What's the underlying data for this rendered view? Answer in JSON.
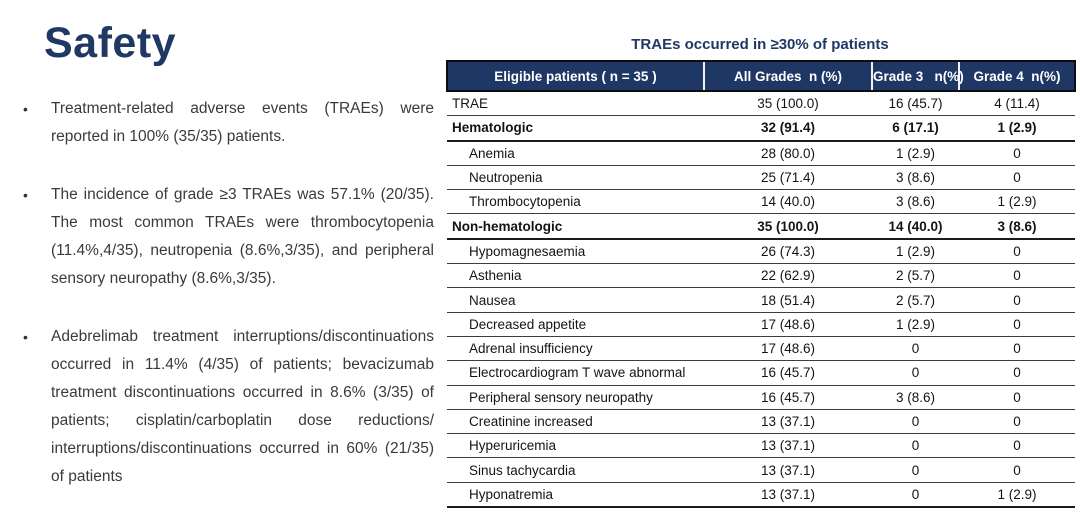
{
  "slide": {
    "title": "Safety",
    "bullet_glyph": "•",
    "bullets": [
      "Treatment-related adverse events (TRAEs) were reported in 100% (35/35) patients.",
      "The incidence of grade ≥3 TRAEs was 57.1% (20/35). The most common TRAEs were thrombocytopenia (11.4%,4/35), neutropenia (8.6%,3/35), and peripheral sensory neuropathy (8.6%,3/35).",
      "Adebrelimab treatment interruptions/discontinuations occurred in 11.4% (4/35) of patients; bevacizumab treatment discontinuations occurred in 8.6% (3/35) of patients; cisplatin/carboplatin dose reductions/ interruptions/discontinuations occurred in 60% (21/35) of patients"
    ]
  },
  "table": {
    "title": "TRAEs occurred in ≥30% of patients",
    "columns": [
      "Eligible patients ( n = 35 )",
      "All Grades  n (%)",
      "Grade 3   n(%)",
      "Grade 4  n(%)"
    ],
    "rows": [
      {
        "label": "TRAE",
        "style": "normal",
        "all_grades": "35 (100.0)",
        "grade3": "16 (45.7)",
        "grade4": "4 (11.4)"
      },
      {
        "label": "Hematologic",
        "style": "section",
        "all_grades": "32 (91.4)",
        "grade3": "6 (17.1)",
        "grade4": "1 (2.9)"
      },
      {
        "label": "Anemia",
        "style": "sub",
        "all_grades": "28 (80.0)",
        "grade3": "1 (2.9)",
        "grade4": "0"
      },
      {
        "label": "Neutropenia",
        "style": "sub",
        "all_grades": "25 (71.4)",
        "grade3": "3 (8.6)",
        "grade4": "0"
      },
      {
        "label": "Thrombocytopenia",
        "style": "sub",
        "all_grades": "14 (40.0)",
        "grade3": "3 (8.6)",
        "grade4": "1 (2.9)"
      },
      {
        "label": "Non-hematologic",
        "style": "section",
        "all_grades": "35 (100.0)",
        "grade3": "14 (40.0)",
        "grade4": "3 (8.6)"
      },
      {
        "label": "Hypomagnesaemia",
        "style": "sub",
        "all_grades": "26 (74.3)",
        "grade3": "1 (2.9)",
        "grade4": "0"
      },
      {
        "label": "Asthenia",
        "style": "sub",
        "all_grades": "22 (62.9)",
        "grade3": "2 (5.7)",
        "grade4": "0"
      },
      {
        "label": "Nausea",
        "style": "sub",
        "all_grades": "18 (51.4)",
        "grade3": "2 (5.7)",
        "grade4": "0"
      },
      {
        "label": "Decreased appetite",
        "style": "sub",
        "all_grades": "17 (48.6)",
        "grade3": "1 (2.9)",
        "grade4": "0"
      },
      {
        "label": "Adrenal insufficiency",
        "style": "sub",
        "all_grades": "17 (48.6)",
        "grade3": "0",
        "grade4": "0"
      },
      {
        "label": "Electrocardiogram T wave abnormal",
        "style": "sub",
        "all_grades": "16 (45.7)",
        "grade3": "0",
        "grade4": "0"
      },
      {
        "label": "Peripheral sensory neuropathy",
        "style": "sub",
        "all_grades": "16 (45.7)",
        "grade3": "3 (8.6)",
        "grade4": "0"
      },
      {
        "label": "Creatinine increased",
        "style": "sub",
        "all_grades": "13 (37.1)",
        "grade3": "0",
        "grade4": "0"
      },
      {
        "label": "Hyperuricemia",
        "style": "sub",
        "all_grades": "13 (37.1)",
        "grade3": "0",
        "grade4": "0"
      },
      {
        "label": "Sinus tachycardia",
        "style": "sub",
        "all_grades": "13 (37.1)",
        "grade3": "0",
        "grade4": "0"
      },
      {
        "label": "Hyponatremia",
        "style": "sub",
        "all_grades": "13 (37.1)",
        "grade3": "0",
        "grade4": "1 (2.9)"
      }
    ]
  },
  "colors": {
    "accent_navy": "#1f3864",
    "header_background": "#1e3765",
    "header_text": "#ffffff",
    "body_text": "#3a3a3a",
    "table_line": "#3d3d3d"
  }
}
